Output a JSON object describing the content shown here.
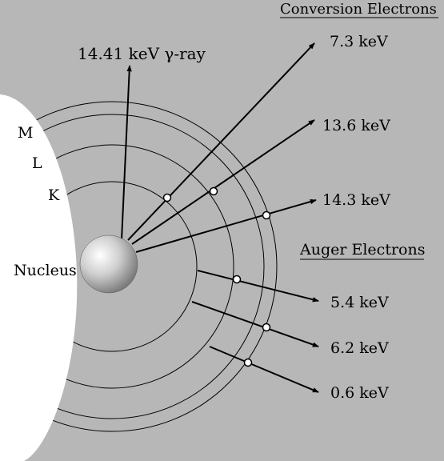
{
  "colors": {
    "background": "#b7b7b7",
    "nucleus_region": "#ffffff",
    "line": "#000000",
    "nucleus_sphere": "#9a9a9a"
  },
  "shell_labels": {
    "k": "K",
    "l": "L",
    "m": "M"
  },
  "nucleus_label": "Nucleus",
  "gamma": {
    "label": "14.41 keV γ-ray"
  },
  "conversion": {
    "heading": "Conversion Electrons",
    "items": [
      {
        "energy": "7.3 keV"
      },
      {
        "energy": "13.6 keV"
      },
      {
        "energy": "14.3 keV"
      }
    ]
  },
  "auger": {
    "heading": "Auger Electrons",
    "items": [
      {
        "energy": "5.4 keV"
      },
      {
        "energy": "6.2 keV"
      },
      {
        "energy": "0.6 keV"
      }
    ]
  }
}
